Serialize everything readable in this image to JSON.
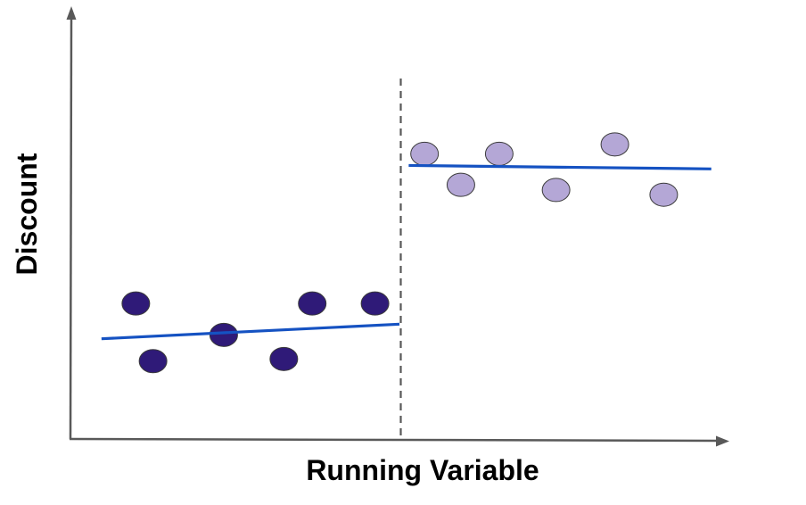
{
  "chart_data": {
    "type": "scatter",
    "xlabel": "Running Variable",
    "ylabel": "Discount",
    "xlim": [
      0,
      10
    ],
    "ylim": [
      0,
      10
    ],
    "cutoff": 5,
    "grid": false,
    "colors": {
      "axis": "#595959",
      "cutoff_line": "#595959",
      "fit_line": "#1552C2",
      "below_points": "#2F1A78",
      "above_points": "#B4A7D6",
      "point_outline": "#3a3a3a"
    },
    "series": [
      {
        "x": [
          0.99,
          1.25,
          2.32,
          3.23,
          3.66,
          4.61
        ],
        "y": [
          3.15,
          1.81,
          2.42,
          1.86,
          3.15,
          3.15
        ]
      },
      {
        "x": [
          5.36,
          5.91,
          6.49,
          7.35,
          8.24,
          8.98
        ],
        "y": [
          6.63,
          5.91,
          6.63,
          5.79,
          6.85,
          5.68
        ]
      }
    ],
    "fit_lines": [
      {
        "x": [
          0.47,
          4.98
        ],
        "y": [
          2.33,
          2.67
        ]
      },
      {
        "x": [
          5.12,
          9.7
        ],
        "y": [
          6.36,
          6.28
        ]
      }
    ]
  }
}
